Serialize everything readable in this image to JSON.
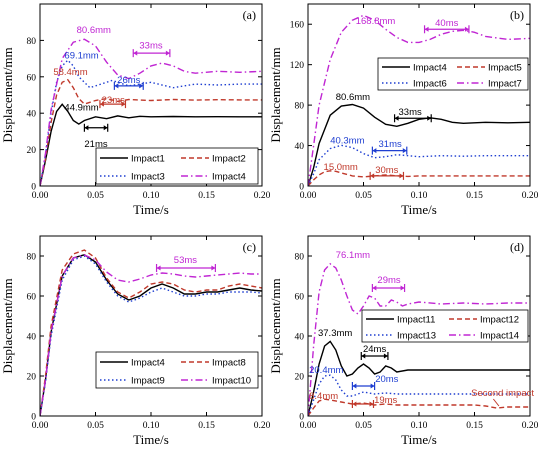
{
  "chart_data": [
    {
      "panel_label": "(a)",
      "type": "line",
      "xlabel": "Time/s",
      "ylabel": "Displacement/mm",
      "xlim": [
        0,
        0.2
      ],
      "ylim": [
        0,
        100
      ],
      "xticks": [
        0,
        0.05,
        0.1,
        0.15,
        0.2
      ],
      "yticks": [
        0,
        20,
        40,
        60,
        80
      ],
      "legend_position": "bottom-right",
      "legend_columns": 2,
      "series": [
        {
          "name": "Impact1",
          "color": "#000000",
          "dash": "solid",
          "x": [
            0,
            0.005,
            0.01,
            0.015,
            0.02,
            0.025,
            0.03,
            0.035,
            0.04,
            0.05,
            0.06,
            0.07,
            0.08,
            0.09,
            0.1,
            0.12,
            0.14,
            0.16,
            0.18,
            0.2
          ],
          "y": [
            0,
            14,
            30,
            41,
            44.9,
            41,
            36,
            34,
            36,
            38,
            37,
            38.5,
            37.5,
            38.3,
            38,
            38.2,
            38,
            38.1,
            38,
            38
          ]
        },
        {
          "name": "Impact2",
          "color": "#c0392b",
          "dash": "dashed",
          "x": [
            0,
            0.005,
            0.01,
            0.015,
            0.02,
            0.025,
            0.03,
            0.035,
            0.04,
            0.05,
            0.06,
            0.07,
            0.08,
            0.1,
            0.12,
            0.14,
            0.16,
            0.18,
            0.2
          ],
          "y": [
            0,
            15,
            35,
            50,
            57,
            58.4,
            54,
            48,
            45,
            47,
            48,
            46.5,
            47.5,
            47,
            47.5,
            47.2,
            47.4,
            47.3,
            47.3
          ]
        },
        {
          "name": "Impact3",
          "color": "#1f3fd1",
          "dash": "dotted",
          "x": [
            0,
            0.005,
            0.01,
            0.015,
            0.02,
            0.025,
            0.03,
            0.035,
            0.045,
            0.055,
            0.065,
            0.08,
            0.1,
            0.12,
            0.14,
            0.16,
            0.18,
            0.2
          ],
          "y": [
            0,
            17,
            40,
            57,
            66,
            69.1,
            66,
            60,
            54,
            56,
            58,
            55,
            57,
            54,
            56,
            55.5,
            56,
            56
          ]
        },
        {
          "name": "Impact4",
          "color": "#c026d3",
          "dash": "dashdot",
          "x": [
            0,
            0.005,
            0.01,
            0.02,
            0.03,
            0.04,
            0.05,
            0.06,
            0.07,
            0.08,
            0.09,
            0.1,
            0.11,
            0.12,
            0.13,
            0.14,
            0.16,
            0.18,
            0.2
          ],
          "y": [
            0,
            18,
            42,
            70,
            79,
            80.6,
            77,
            68,
            61,
            59,
            62,
            66,
            67.5,
            66,
            63,
            62,
            63,
            62.5,
            63
          ]
        }
      ],
      "annotations": [
        {
          "text": "80.6mm",
          "color": "#c026d3"
        },
        {
          "text": "69.1mm",
          "color": "#1f3fd1"
        },
        {
          "text": "58.4mm",
          "color": "#c0392b"
        },
        {
          "text": "44.9mm",
          "color": "#000000"
        },
        {
          "text": "33ms",
          "color": "#c026d3",
          "x1": 0.084,
          "x2": 0.117,
          "y": 73
        },
        {
          "text": "26ms",
          "color": "#1f3fd1",
          "x1": 0.067,
          "x2": 0.093,
          "y": 55
        },
        {
          "text": "23ms",
          "color": "#c0392b",
          "x1": 0.054,
          "x2": 0.077,
          "y": 45
        },
        {
          "text": "21ms",
          "color": "#000000",
          "x1": 0.04,
          "x2": 0.061,
          "y": 32
        }
      ]
    },
    {
      "panel_label": "(b)",
      "type": "line",
      "xlabel": "Time/s",
      "ylabel": "Displacement/mm",
      "xlim": [
        0,
        0.2
      ],
      "ylim": [
        0,
        180
      ],
      "xticks": [
        0,
        0.05,
        0.1,
        0.15,
        0.2
      ],
      "yticks": [
        0,
        40,
        80,
        120,
        160
      ],
      "legend_position": "top-right",
      "legend_columns": 2,
      "series": [
        {
          "name": "Impact4",
          "color": "#000000",
          "dash": "solid",
          "x": [
            0,
            0.005,
            0.01,
            0.02,
            0.03,
            0.04,
            0.05,
            0.06,
            0.07,
            0.08,
            0.09,
            0.1,
            0.11,
            0.12,
            0.13,
            0.14,
            0.16,
            0.18,
            0.2
          ],
          "y": [
            0,
            18,
            42,
            70,
            79,
            80.6,
            77,
            68,
            61,
            59,
            62,
            66,
            67.5,
            66,
            63,
            62,
            63,
            62.5,
            63
          ]
        },
        {
          "name": "Impact5",
          "color": "#c0392b",
          "dash": "dashed",
          "x": [
            0,
            0.005,
            0.01,
            0.015,
            0.02,
            0.025,
            0.03,
            0.04,
            0.05,
            0.06,
            0.07,
            0.08,
            0.09,
            0.1,
            0.12,
            0.14,
            0.16,
            0.18,
            0.2
          ],
          "y": [
            0,
            6,
            11,
            14,
            15,
            14.5,
            13,
            10,
            9,
            10,
            11,
            10,
            9.5,
            10,
            10,
            10,
            10,
            10,
            10
          ]
        },
        {
          "name": "Impact6",
          "color": "#1f3fd1",
          "dash": "dotted",
          "x": [
            0,
            0.005,
            0.01,
            0.02,
            0.03,
            0.04,
            0.05,
            0.06,
            0.07,
            0.08,
            0.09,
            0.1,
            0.12,
            0.14,
            0.16,
            0.18,
            0.2
          ],
          "y": [
            0,
            12,
            26,
            37,
            40.3,
            38,
            32,
            28,
            29,
            31,
            30,
            29,
            30,
            29.5,
            30,
            30,
            30
          ]
        },
        {
          "name": "Impact7",
          "color": "#c026d3",
          "dash": "dashdot",
          "x": [
            0,
            0.005,
            0.01,
            0.02,
            0.03,
            0.04,
            0.05,
            0.06,
            0.07,
            0.08,
            0.09,
            0.1,
            0.11,
            0.12,
            0.13,
            0.14,
            0.15,
            0.16,
            0.18,
            0.2
          ],
          "y": [
            0,
            40,
            80,
            125,
            152,
            164,
            168.8,
            164,
            155,
            147,
            142,
            142,
            145,
            150,
            153,
            154,
            152,
            148,
            145,
            146
          ]
        }
      ],
      "annotations": [
        {
          "text": "168.8mm",
          "color": "#c026d3"
        },
        {
          "text": "40ms",
          "color": "#c026d3",
          "x1": 0.105,
          "x2": 0.145,
          "y": 155
        },
        {
          "text": "80.6mm",
          "color": "#000000"
        },
        {
          "text": "33ms",
          "color": "#000000",
          "x1": 0.078,
          "x2": 0.111,
          "y": 67
        },
        {
          "text": "40.3mm",
          "color": "#1f3fd1"
        },
        {
          "text": "31ms",
          "color": "#1f3fd1",
          "x1": 0.058,
          "x2": 0.089,
          "y": 35
        },
        {
          "text": "15.0mm",
          "color": "#c0392b"
        },
        {
          "text": "30ms",
          "color": "#c0392b",
          "x1": 0.056,
          "x2": 0.086,
          "y": 10
        }
      ]
    },
    {
      "panel_label": "(c)",
      "type": "line",
      "xlabel": "Time/s",
      "ylabel": "Displacement/mm",
      "xlim": [
        0,
        0.2
      ],
      "ylim": [
        0,
        90
      ],
      "xticks": [
        0,
        0.05,
        0.1,
        0.15,
        0.2
      ],
      "yticks": [
        0,
        20,
        40,
        60,
        80
      ],
      "legend_position": "bottom-right",
      "legend_columns": 2,
      "series": [
        {
          "name": "Impact4",
          "color": "#000000",
          "dash": "solid",
          "x": [
            0,
            0.005,
            0.01,
            0.02,
            0.03,
            0.04,
            0.05,
            0.06,
            0.07,
            0.08,
            0.09,
            0.1,
            0.11,
            0.12,
            0.13,
            0.14,
            0.15,
            0.16,
            0.17,
            0.18,
            0.19,
            0.2
          ],
          "y": [
            0,
            18,
            42,
            70,
            79,
            80.6,
            77,
            68,
            61,
            58,
            60,
            64,
            66,
            64,
            61,
            61,
            62,
            62,
            63,
            64,
            63,
            62.5
          ]
        },
        {
          "name": "Impact8",
          "color": "#c0392b",
          "dash": "dashed",
          "x": [
            0,
            0.005,
            0.01,
            0.02,
            0.03,
            0.04,
            0.05,
            0.06,
            0.07,
            0.08,
            0.09,
            0.1,
            0.11,
            0.12,
            0.13,
            0.14,
            0.15,
            0.16,
            0.17,
            0.18,
            0.19,
            0.2
          ],
          "y": [
            0,
            20,
            45,
            73,
            81,
            83,
            79,
            69,
            62,
            59,
            62,
            66,
            67,
            66,
            63,
            62,
            63,
            63,
            65,
            66,
            65,
            64
          ]
        },
        {
          "name": "Impact9",
          "color": "#1f3fd1",
          "dash": "dotted",
          "x": [
            0,
            0.005,
            0.01,
            0.02,
            0.03,
            0.04,
            0.05,
            0.06,
            0.07,
            0.08,
            0.09,
            0.1,
            0.11,
            0.12,
            0.13,
            0.14,
            0.15,
            0.16,
            0.17,
            0.18,
            0.19,
            0.2
          ],
          "y": [
            0,
            17,
            40,
            68,
            78,
            80,
            76,
            67,
            60,
            57,
            59,
            62,
            64,
            62,
            60,
            60,
            61,
            61,
            62,
            62,
            62,
            61.5
          ]
        },
        {
          "name": "Impact10",
          "color": "#c026d3",
          "dash": "dashdot",
          "x": [
            0,
            0.005,
            0.01,
            0.02,
            0.03,
            0.04,
            0.05,
            0.06,
            0.07,
            0.08,
            0.09,
            0.1,
            0.11,
            0.12,
            0.13,
            0.14,
            0.15,
            0.16,
            0.17,
            0.18,
            0.19,
            0.2
          ],
          "y": [
            0,
            18,
            42,
            70,
            79,
            80.5,
            78,
            72,
            68,
            67,
            68.5,
            70.5,
            71.5,
            71,
            70,
            69.5,
            70,
            70.5,
            71,
            71.5,
            71,
            71
          ]
        }
      ],
      "annotations": [
        {
          "text": "53ms",
          "color": "#c026d3",
          "x1": 0.105,
          "x2": 0.158,
          "y": 74
        }
      ]
    },
    {
      "panel_label": "(d)",
      "type": "line",
      "xlabel": "Time/s",
      "ylabel": "Displacement/mm",
      "xlim": [
        0,
        0.2
      ],
      "ylim": [
        0,
        90
      ],
      "xticks": [
        0,
        0.05,
        0.1,
        0.15,
        0.2
      ],
      "yticks": [
        0,
        20,
        40,
        60,
        80
      ],
      "legend_position": "center-right",
      "legend_columns": 2,
      "series": [
        {
          "name": "Impact11",
          "color": "#000000",
          "dash": "solid",
          "x": [
            0,
            0.005,
            0.01,
            0.015,
            0.02,
            0.025,
            0.03,
            0.035,
            0.04,
            0.045,
            0.05,
            0.055,
            0.06,
            0.065,
            0.07,
            0.075,
            0.08,
            0.09,
            0.1,
            0.12,
            0.14,
            0.16,
            0.18,
            0.2
          ],
          "y": [
            0,
            12,
            26,
            35,
            37.3,
            33,
            25,
            20,
            21,
            24,
            26,
            24,
            21,
            22,
            25,
            24,
            22,
            23,
            23,
            23,
            23,
            23,
            23,
            23
          ]
        },
        {
          "name": "Impact12",
          "color": "#c0392b",
          "dash": "dashed",
          "x": [
            0,
            0.005,
            0.01,
            0.015,
            0.02,
            0.03,
            0.04,
            0.05,
            0.06,
            0.07,
            0.08,
            0.09,
            0.1,
            0.12,
            0.14,
            0.15,
            0.16,
            0.17,
            0.18,
            0.2
          ],
          "y": [
            0,
            4,
            7.5,
            8.4,
            8,
            7,
            6,
            6.5,
            5.5,
            6,
            5.5,
            5.5,
            5.5,
            5.5,
            5.5,
            5.5,
            5,
            4,
            4.5,
            4.5
          ]
        },
        {
          "name": "Impact13",
          "color": "#1f3fd1",
          "dash": "dotted",
          "x": [
            0,
            0.005,
            0.01,
            0.015,
            0.02,
            0.025,
            0.03,
            0.035,
            0.04,
            0.05,
            0.06,
            0.07,
            0.08,
            0.1,
            0.12,
            0.14,
            0.16,
            0.18,
            0.2
          ],
          "y": [
            0,
            8,
            16,
            20,
            20.4,
            18,
            13,
            10,
            10,
            12,
            11,
            11.5,
            11,
            11,
            11,
            11,
            11,
            11,
            11
          ]
        },
        {
          "name": "Impact14",
          "color": "#c026d3",
          "dash": "dashdot",
          "x": [
            0,
            0.005,
            0.01,
            0.015,
            0.02,
            0.025,
            0.03,
            0.035,
            0.04,
            0.045,
            0.05,
            0.055,
            0.06,
            0.065,
            0.07,
            0.075,
            0.08,
            0.085,
            0.09,
            0.1,
            0.12,
            0.14,
            0.16,
            0.18,
            0.2
          ],
          "y": [
            0,
            35,
            62,
            73,
            76.1,
            74,
            68,
            60,
            53,
            51,
            55,
            60,
            59,
            55,
            55,
            58,
            57,
            55,
            56,
            57,
            56,
            56.5,
            56,
            56.5,
            56.5
          ]
        }
      ],
      "annotations": [
        {
          "text": "76.1mm",
          "color": "#c026d3"
        },
        {
          "text": "29ms",
          "color": "#c026d3",
          "x1": 0.058,
          "x2": 0.087,
          "y": 64
        },
        {
          "text": "37.3mm",
          "color": "#000000"
        },
        {
          "text": "24ms",
          "color": "#000000",
          "x1": 0.048,
          "x2": 0.072,
          "y": 30
        },
        {
          "text": "20.4mm",
          "color": "#1f3fd1"
        },
        {
          "text": "20ms",
          "color": "#1f3fd1",
          "x1": 0.04,
          "x2": 0.06,
          "y": 15
        },
        {
          "text": "8.4mm",
          "color": "#c0392b"
        },
        {
          "text": "19ms",
          "color": "#c0392b",
          "x1": 0.04,
          "x2": 0.059,
          "y": 6
        },
        {
          "text": "Second impact",
          "color": "#c0392b"
        }
      ]
    }
  ]
}
